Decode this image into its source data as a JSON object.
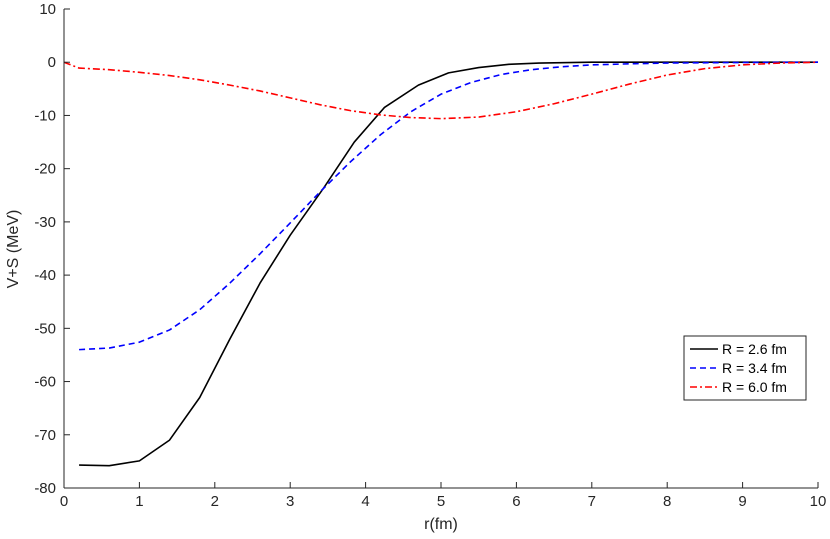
{
  "chart_data": {
    "type": "line",
    "title": "",
    "xlabel": "r(fm)",
    "ylabel": "V+S (MeV)",
    "xlim": [
      0,
      10
    ],
    "ylim": [
      -80,
      10
    ],
    "xticks": [
      0,
      1,
      2,
      3,
      4,
      5,
      6,
      7,
      8,
      9,
      10
    ],
    "yticks": [
      10,
      0,
      -10,
      -20,
      -30,
      -40,
      -50,
      -60,
      -70,
      -80
    ],
    "grid": false,
    "legend_position": "lower-right",
    "series": [
      {
        "name": "R = 2.6 fm",
        "color": "#000000",
        "style": "solid",
        "x": [
          0.2,
          0.6,
          1.0,
          1.4,
          1.8,
          2.2,
          2.6,
          3.0,
          3.45,
          3.85,
          4.25,
          4.7,
          5.1,
          5.5,
          5.9,
          6.3,
          7.0,
          8.0,
          9.0,
          10.0
        ],
        "y": [
          -75.7,
          -75.8,
          -74.9,
          -71.0,
          -63.0,
          -52.0,
          -41.5,
          -32.5,
          -23.5,
          -15.0,
          -8.5,
          -4.3,
          -2.0,
          -1.0,
          -0.4,
          -0.15,
          0,
          0,
          0,
          0
        ]
      },
      {
        "name": "R = 3.4 fm",
        "color": "#0000ff",
        "style": "dashed",
        "x": [
          0.2,
          0.6,
          1.0,
          1.4,
          1.8,
          2.2,
          2.6,
          3.0,
          3.4,
          3.8,
          4.2,
          4.6,
          5.0,
          5.4,
          5.8,
          6.2,
          6.6,
          7.0,
          7.5,
          8.0,
          9.0,
          10.0
        ],
        "y": [
          -54.0,
          -53.7,
          -52.6,
          -50.3,
          -46.5,
          -41.5,
          -36.0,
          -30.2,
          -24.3,
          -18.7,
          -13.6,
          -9.3,
          -6.0,
          -3.8,
          -2.3,
          -1.4,
          -0.85,
          -0.5,
          -0.3,
          -0.15,
          -0.05,
          0
        ]
      },
      {
        "name": "R = 6.0 fm",
        "color": "#ff0000",
        "style": "dashdot",
        "x": [
          0.0,
          0.2,
          0.6,
          1.0,
          1.4,
          1.8,
          2.2,
          2.6,
          3.0,
          3.4,
          3.8,
          4.2,
          4.6,
          5.0,
          5.5,
          6.0,
          6.5,
          7.0,
          7.5,
          8.0,
          8.5,
          9.0,
          9.5,
          10.0
        ],
        "y": [
          0.0,
          -1.1,
          -1.4,
          -1.9,
          -2.5,
          -3.3,
          -4.3,
          -5.4,
          -6.7,
          -8.0,
          -9.1,
          -9.9,
          -10.4,
          -10.6,
          -10.3,
          -9.3,
          -7.8,
          -6.0,
          -4.1,
          -2.4,
          -1.2,
          -0.5,
          -0.15,
          0
        ]
      }
    ]
  }
}
